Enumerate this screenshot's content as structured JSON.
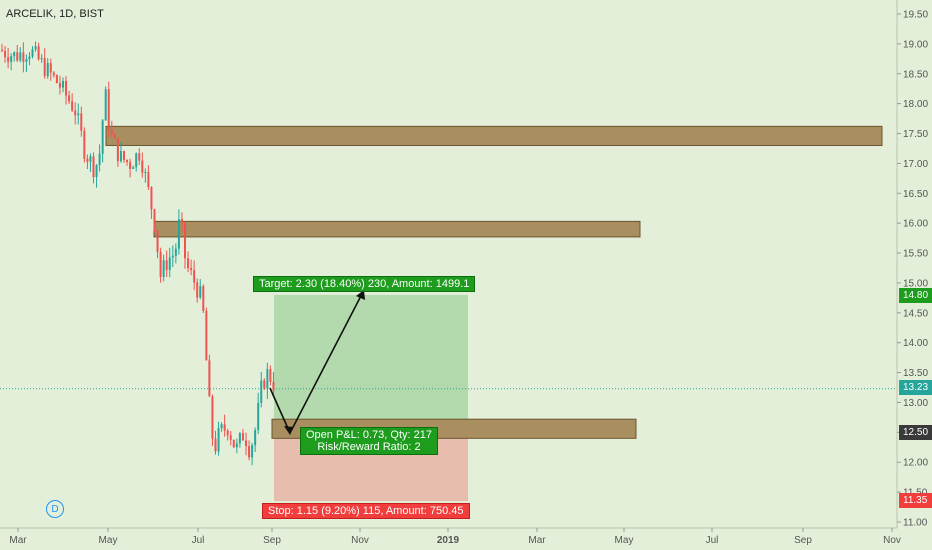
{
  "header": {
    "symbol_title": "ARCELIK, 1D, BIST"
  },
  "badge": {
    "letter": "D"
  },
  "chart_data": {
    "type": "candlestick",
    "y_ticks": [
      "11.00",
      "11.50",
      "12.00",
      "12.50",
      "13.00",
      "13.50",
      "14.00",
      "14.50",
      "15.00",
      "15.50",
      "16.00",
      "16.50",
      "17.00",
      "17.50",
      "18.00",
      "18.50",
      "19.00",
      "19.50"
    ],
    "x_ticks": [
      "Mar",
      "May",
      "Jul",
      "Sep",
      "Nov",
      "2019",
      "Mar",
      "May",
      "Jul",
      "Sep",
      "Nov"
    ],
    "last_price": "13.23",
    "price_tags": {
      "target": "14.80",
      "current": "13.23",
      "entry": "12.50",
      "stop": "11.35"
    },
    "zones": [
      {
        "from": "May",
        "to": "2019 Nov",
        "low": 17.3,
        "high": 17.62
      },
      {
        "from": "May",
        "to": "2019 Jun",
        "low": 15.77,
        "high": 16.03
      },
      {
        "from": "Aug",
        "to": "2019 Jun",
        "low": 12.4,
        "high": 12.72
      }
    ],
    "position": {
      "entry": 12.5,
      "target": 14.8,
      "stop": 11.35,
      "target_label": "Target: 2.30 (18.40%) 230, Amount: 1499.1",
      "stop_label": "Stop: 1.15 (9.20%) 115, Amount: 750.45",
      "pnl_line1": "Open P&L: 0.73, Qty: 217",
      "pnl_line2": "Risk/Reward Ratio: 2"
    },
    "colors": {
      "up": "#26a69a",
      "down": "#ef5350",
      "zone_fill": "#a98e5f",
      "zone_border": "#6b5530",
      "background": "#e3efd9"
    }
  }
}
